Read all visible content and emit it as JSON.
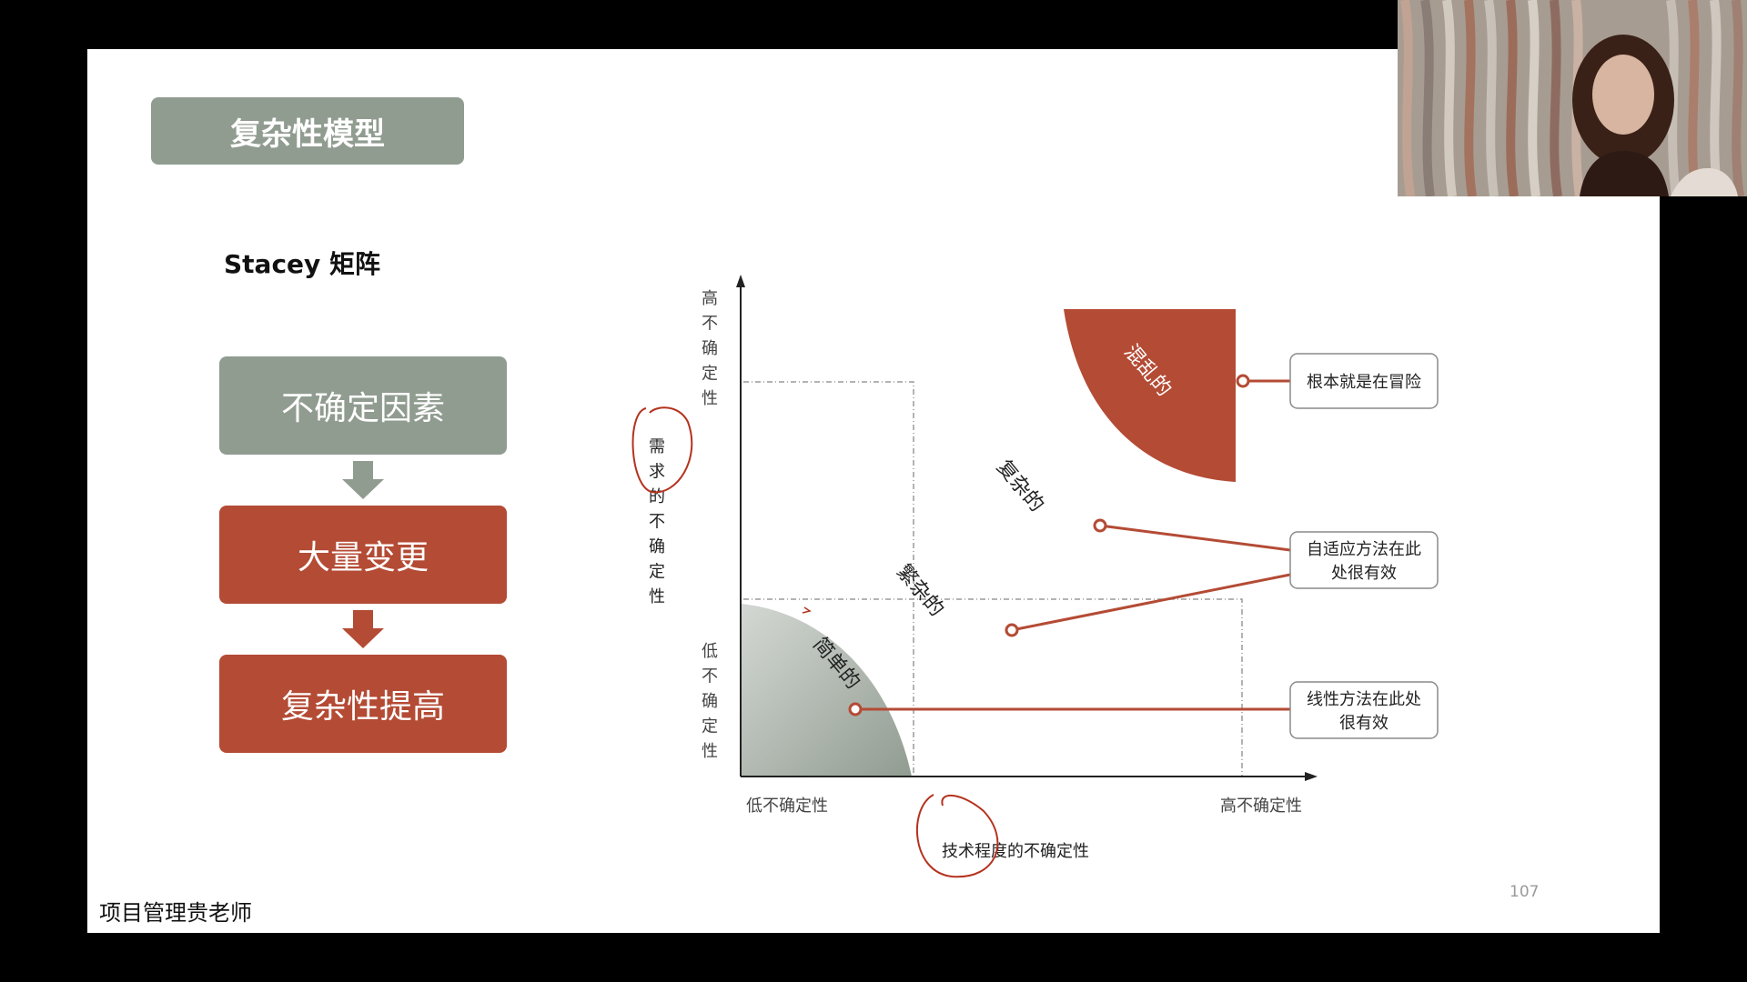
{
  "slide": {
    "title": "复杂性模型",
    "subtitle": "Stacey 矩阵",
    "flow": [
      "不确定因素",
      "大量变更",
      "复杂性提高"
    ],
    "footer": "项目管理贵老师",
    "page_number": "107"
  },
  "matrix": {
    "y_axis": {
      "high": "高不确定性",
      "low": "低不确定性",
      "label": "需求的不确定性"
    },
    "x_axis": {
      "low": "低不确定性",
      "high": "高不确定性",
      "label": "技术程度的不确定性"
    },
    "regions": {
      "chaotic": "混乱的",
      "complex": "复杂的",
      "complicated": "繁杂的",
      "simple": "简单的"
    },
    "callouts": {
      "chaotic": "根本就是在冒险",
      "adaptive_line1": "自适应方法在此",
      "adaptive_line2": "处很有效",
      "linear_line1": "线性方法在此处",
      "linear_line2": "很有效"
    }
  },
  "colors": {
    "grey": "#919c91",
    "red": "#b44b35",
    "annotation": "#b5321e"
  }
}
